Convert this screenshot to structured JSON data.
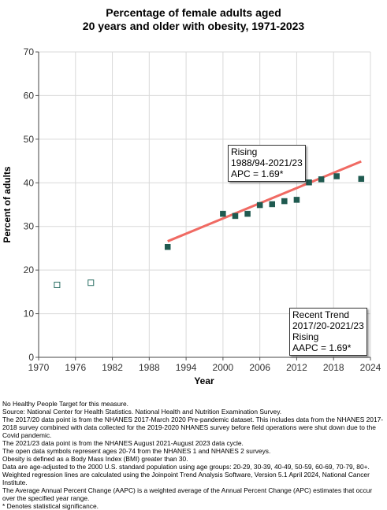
{
  "chart_data": {
    "type": "scatter",
    "title_lines": [
      "Percentage of female adults aged",
      "20 years and older with obesity, 1971-2023"
    ],
    "xlabel": "Year",
    "ylabel": "Percent of adults",
    "xlim": [
      1970,
      2024
    ],
    "ylim": [
      0,
      70
    ],
    "x_ticks": [
      1970,
      1976,
      1982,
      1988,
      1994,
      2000,
      2006,
      2012,
      2018,
      2024
    ],
    "y_ticks": [
      0,
      10,
      20,
      30,
      40,
      50,
      60,
      70
    ],
    "grid": true,
    "series": [
      {
        "marker": "open-square",
        "color": "#2a6e63",
        "points": [
          [
            1973,
            16.6
          ],
          [
            1978.5,
            17.1
          ]
        ]
      },
      {
        "marker": "filled-square",
        "color": "#1f5a50",
        "points": [
          [
            1991,
            25.3
          ],
          [
            2000,
            32.9
          ],
          [
            2002,
            32.4
          ],
          [
            2004,
            32.9
          ],
          [
            2006,
            34.9
          ],
          [
            2008,
            35.1
          ],
          [
            2010,
            35.8
          ],
          [
            2012,
            36.1
          ],
          [
            2014,
            40.1
          ],
          [
            2016,
            40.8
          ],
          [
            2018.5,
            41.5
          ],
          [
            2022.5,
            40.9
          ]
        ]
      }
    ],
    "trend_line": {
      "color": "#f06a63",
      "x": [
        1991,
        2022.5
      ],
      "y": [
        26.6,
        44.9
      ]
    },
    "annotations": [
      {
        "lines": [
          "Rising",
          "1988/94-2021/23",
          "APC =  1.69*"
        ]
      },
      {
        "lines": [
          "Recent Trend",
          "2017/20-2021/23",
          "Rising",
          "AAPC =  1.69*"
        ]
      }
    ]
  },
  "footnotes": [
    "No Healthy People Target for this measure.",
    "Source: National Center for Health Statistics. National Health and Nutrition Examination Survey.",
    "The 2017/20 data point is from the NHANES 2017-March 2020 Pre-pandemic dataset. This includes data from the NHANES 2017-2018 survey combined with data collected for the 2019-2020 NHANES survey before field operations were shut down due to the Covid pandemic.",
    "The 2021/23 data point is from the NHANES August 2021-August 2023 data cycle.",
    "The open data symbols represent ages 20-74 from the NHANES 1 and NHANES 2 surveys.",
    "Obesity is defined as a Body Mass Index (BMI) greater than 30.",
    "Data are age-adjusted to the 2000 U.S. standard population using age groups: 20-29, 30-39, 40-49, 50-59, 60-69, 70-79, 80+.",
    "Weighted regression lines are calculated using the Joinpoint Trend Analysis Software, Version 5.1 April 2024, National Cancer Institute.",
    "The Average Annual Percent Change (AAPC) is a weighted average of the Annual Percent Change (APC) estimates that occur over the specified year range.",
    "* Denotes statistical significance."
  ]
}
